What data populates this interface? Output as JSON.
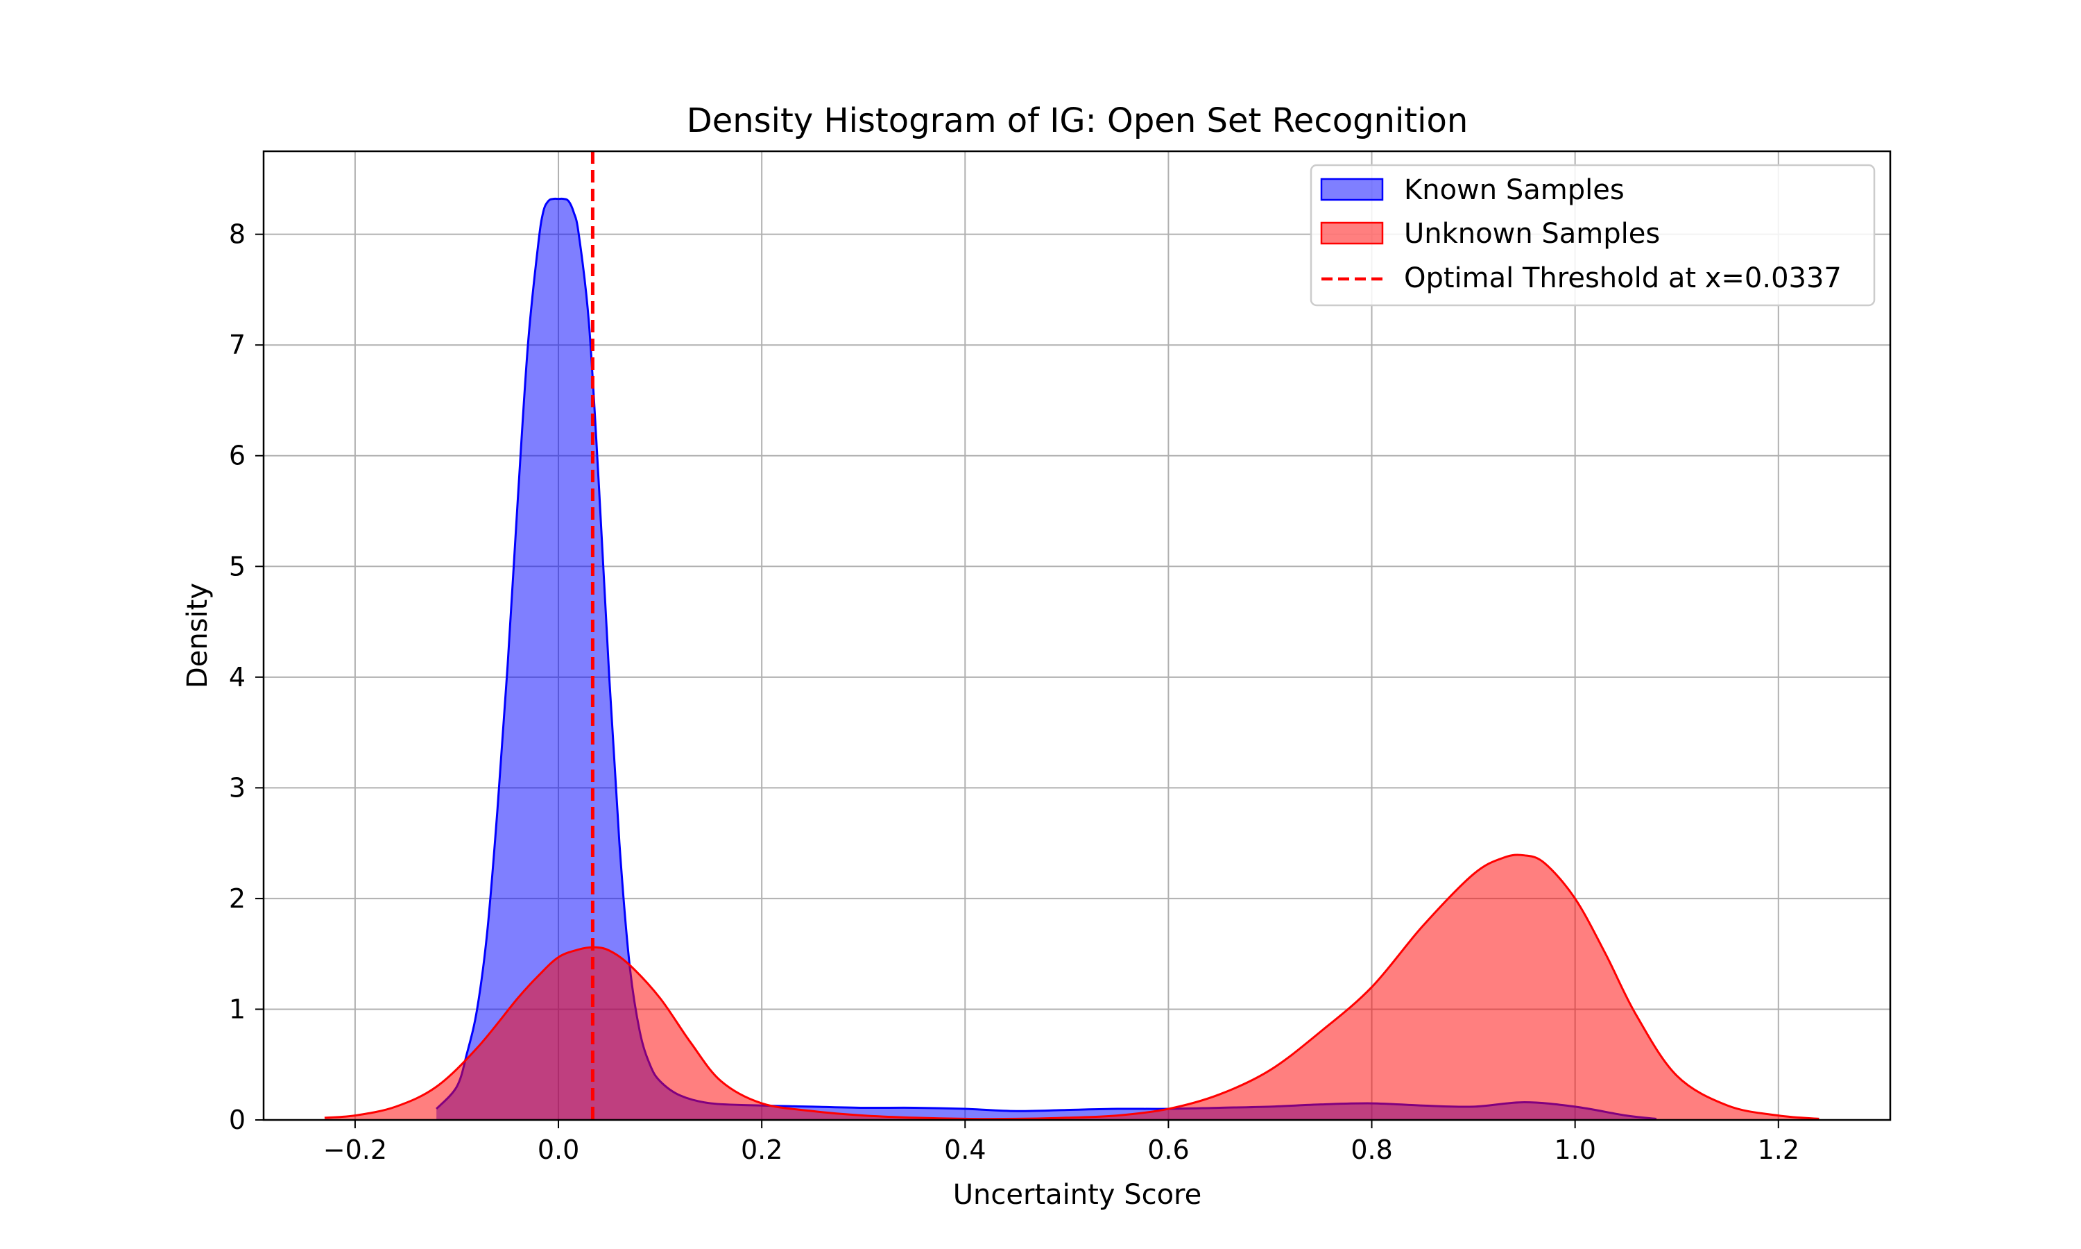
{
  "chart_data": {
    "type": "area",
    "title": "Density Histogram of IG: Open Set Recognition",
    "xlabel": "Uncertainty Score",
    "ylabel": "Density",
    "xlim": [
      -0.29,
      1.31
    ],
    "ylim": [
      0,
      8.75
    ],
    "xticks": [
      -0.2,
      0.0,
      0.2,
      0.4,
      0.6,
      0.8,
      1.0,
      1.2
    ],
    "xtick_labels": [
      "−0.2",
      "0.0",
      "0.2",
      "0.4",
      "0.6",
      "0.8",
      "1.0",
      "1.2"
    ],
    "yticks": [
      0,
      1,
      2,
      3,
      4,
      5,
      6,
      7,
      8
    ],
    "ytick_labels": [
      "0",
      "1",
      "2",
      "3",
      "4",
      "5",
      "6",
      "7",
      "8"
    ],
    "grid": true,
    "legend_position": "top-right",
    "series": [
      {
        "name": "Known Samples",
        "color": "#0000ff",
        "fill": "#0000ff",
        "fill_opacity": 0.5,
        "x": [
          -0.12,
          -0.1,
          -0.09,
          -0.08,
          -0.07,
          -0.06,
          -0.05,
          -0.04,
          -0.03,
          -0.02,
          -0.015,
          -0.01,
          -0.005,
          0.0,
          0.005,
          0.01,
          0.015,
          0.02,
          0.03,
          0.04,
          0.05,
          0.06,
          0.07,
          0.08,
          0.09,
          0.1,
          0.12,
          0.15,
          0.2,
          0.25,
          0.3,
          0.35,
          0.4,
          0.45,
          0.5,
          0.55,
          0.6,
          0.65,
          0.7,
          0.75,
          0.8,
          0.85,
          0.9,
          0.95,
          1.0,
          1.05,
          1.08
        ],
        "y": [
          0.1,
          0.3,
          0.6,
          1.0,
          1.7,
          2.8,
          4.1,
          5.6,
          7.0,
          7.9,
          8.2,
          8.3,
          8.32,
          8.32,
          8.32,
          8.3,
          8.2,
          8.0,
          7.2,
          5.7,
          4.0,
          2.5,
          1.4,
          0.8,
          0.5,
          0.35,
          0.22,
          0.15,
          0.13,
          0.12,
          0.11,
          0.11,
          0.1,
          0.08,
          0.09,
          0.1,
          0.1,
          0.11,
          0.12,
          0.14,
          0.15,
          0.13,
          0.12,
          0.16,
          0.12,
          0.04,
          0.01
        ]
      },
      {
        "name": "Unknown Samples",
        "color": "#ff0000",
        "fill": "#ff0000",
        "fill_opacity": 0.5,
        "x": [
          -0.23,
          -0.2,
          -0.16,
          -0.12,
          -0.08,
          -0.04,
          -0.02,
          0.0,
          0.02,
          0.035,
          0.05,
          0.07,
          0.1,
          0.13,
          0.16,
          0.2,
          0.25,
          0.3,
          0.35,
          0.4,
          0.45,
          0.5,
          0.55,
          0.6,
          0.65,
          0.7,
          0.75,
          0.8,
          0.85,
          0.9,
          0.93,
          0.95,
          0.97,
          1.0,
          1.03,
          1.06,
          1.1,
          1.15,
          1.2,
          1.24
        ],
        "y": [
          0.02,
          0.04,
          0.12,
          0.3,
          0.65,
          1.1,
          1.3,
          1.47,
          1.54,
          1.56,
          1.53,
          1.4,
          1.1,
          0.7,
          0.35,
          0.15,
          0.08,
          0.04,
          0.02,
          0.01,
          0.01,
          0.02,
          0.04,
          0.1,
          0.23,
          0.45,
          0.8,
          1.2,
          1.75,
          2.22,
          2.37,
          2.39,
          2.32,
          2.0,
          1.5,
          0.95,
          0.4,
          0.13,
          0.04,
          0.01
        ]
      }
    ],
    "threshold": {
      "name": "Optimal Threshold at x=0.0337",
      "x": 0.0337,
      "color": "#ff0000",
      "style": "dashed"
    }
  }
}
